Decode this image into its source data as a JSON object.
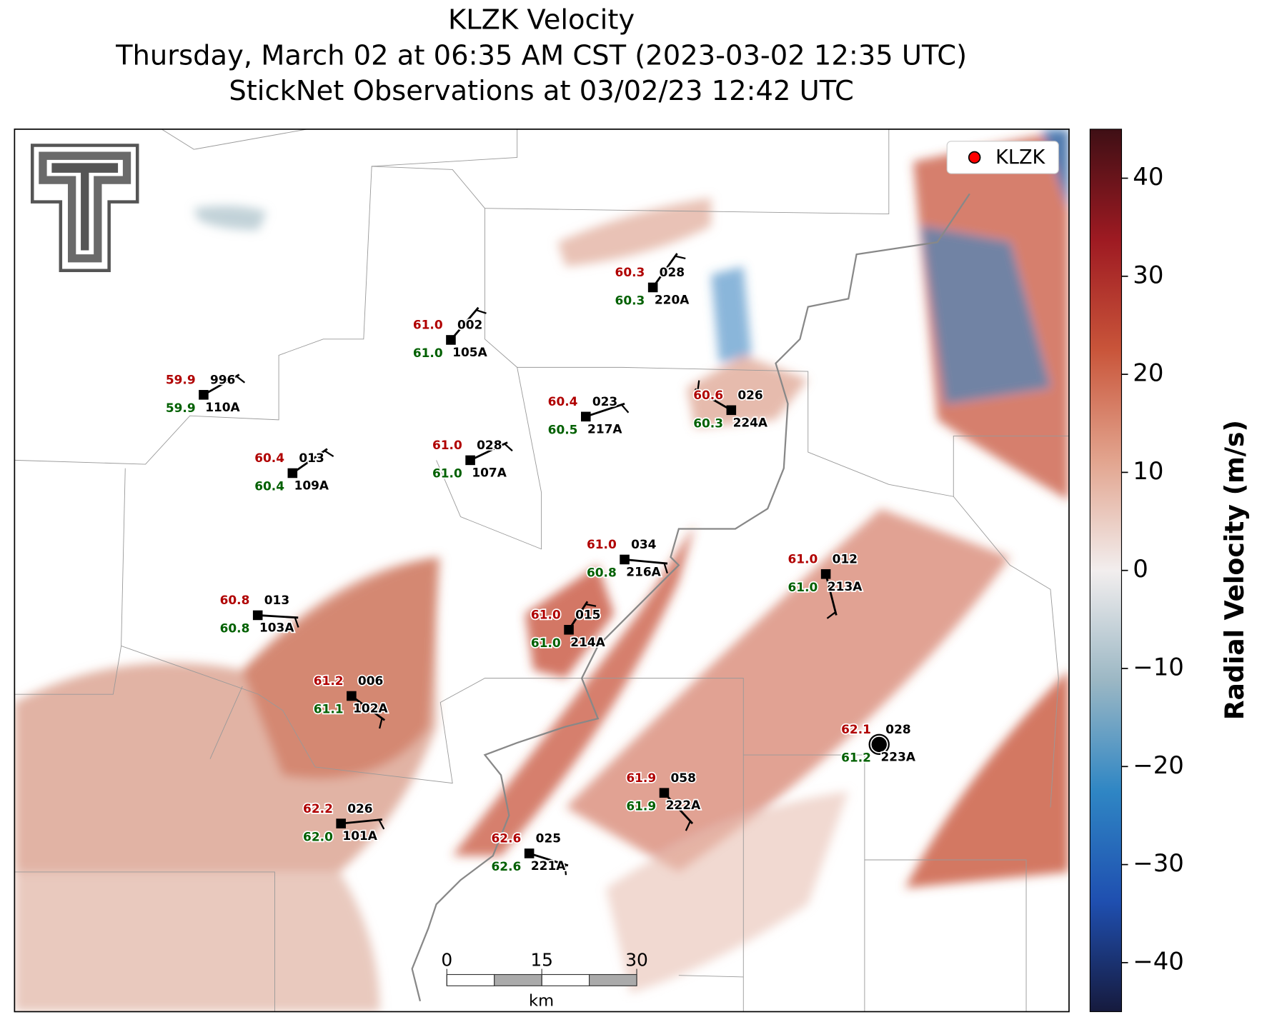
{
  "title": [
    "KLZK Velocity",
    "Thursday, March 02 at 06:35 AM CST (2023-03-02 12:35 UTC)",
    "StickNet Observations at 03/02/23 12:42 UTC"
  ],
  "colorbar": {
    "label": "Radial Velocity (m/s)",
    "lim": [
      -45,
      45
    ],
    "ticks": [
      {
        "value": -40,
        "label": "−40"
      },
      {
        "value": -30,
        "label": "−30"
      },
      {
        "value": -20,
        "label": "−20"
      },
      {
        "value": -10,
        "label": "−10"
      },
      0,
      10,
      20,
      30,
      40
    ],
    "colors": [
      "#161a3d",
      "#1f4fb0",
      "#2f86c4",
      "#9bb7c4",
      "#f2eeee",
      "#e2a48e",
      "#c9553a",
      "#9e1a22",
      "#3f0f15"
    ]
  },
  "legend": {
    "label": "KLZK",
    "color": "#ff0000"
  },
  "scale_bar": {
    "ticks": [
      0,
      15,
      30
    ],
    "unit": "km"
  },
  "stations": [
    {
      "id": "220A",
      "temperature": "60.3",
      "dewpoint": "60.3",
      "pressure": "028"
    },
    {
      "id": "105A",
      "temperature": "61.0",
      "dewpoint": "61.0",
      "pressure": "002"
    },
    {
      "id": "110A",
      "temperature": "59.9",
      "dewpoint": "59.9",
      "pressure": "996"
    },
    {
      "id": "217A",
      "temperature": "60.4",
      "dewpoint": "60.5",
      "pressure": "023"
    },
    {
      "id": "224A",
      "temperature": "60.6",
      "dewpoint": "60.3",
      "pressure": "026"
    },
    {
      "id": "107A",
      "temperature": "61.0",
      "dewpoint": "61.0",
      "pressure": "028"
    },
    {
      "id": "109A",
      "temperature": "60.4",
      "dewpoint": "60.4",
      "pressure": "013"
    },
    {
      "id": "216A",
      "temperature": "61.0",
      "dewpoint": "60.8",
      "pressure": "034"
    },
    {
      "id": "213A",
      "temperature": "61.0",
      "dewpoint": "61.0",
      "pressure": "012"
    },
    {
      "id": "103A",
      "temperature": "60.8",
      "dewpoint": "60.8",
      "pressure": "013"
    },
    {
      "id": "214A",
      "temperature": "61.0",
      "dewpoint": "61.0",
      "pressure": "015"
    },
    {
      "id": "102A",
      "temperature": "61.2",
      "dewpoint": "61.1",
      "pressure": "006"
    },
    {
      "id": "223A",
      "temperature": "62.1",
      "dewpoint": "61.2",
      "pressure": "028"
    },
    {
      "id": "222A",
      "temperature": "61.9",
      "dewpoint": "61.9",
      "pressure": "058"
    },
    {
      "id": "101A",
      "temperature": "62.2",
      "dewpoint": "62.0",
      "pressure": "026"
    },
    {
      "id": "221A",
      "temperature": "62.6",
      "dewpoint": "62.6",
      "pressure": "025"
    }
  ]
}
